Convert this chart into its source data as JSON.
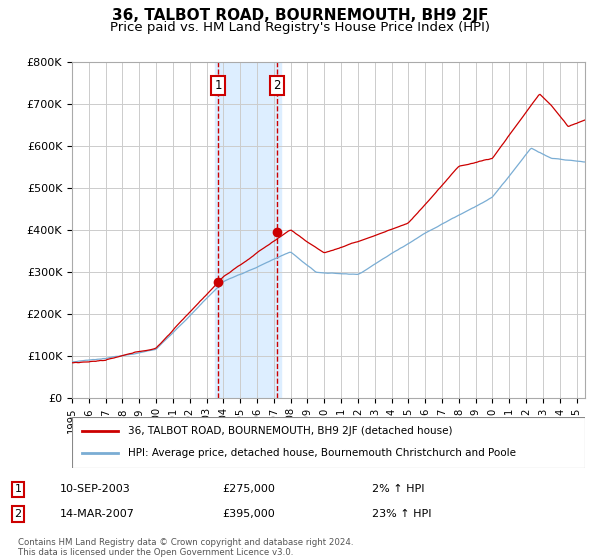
{
  "title": "36, TALBOT ROAD, BOURNEMOUTH, BH9 2JF",
  "subtitle": "Price paid vs. HM Land Registry's House Price Index (HPI)",
  "ylabel_ticks": [
    "£0",
    "£100K",
    "£200K",
    "£300K",
    "£400K",
    "£500K",
    "£600K",
    "£700K",
    "£800K"
  ],
  "ylim": [
    0,
    800000
  ],
  "xlim_start": 1995.0,
  "xlim_end": 2025.5,
  "purchase1_x": 2003.69,
  "purchase1_y": 275000,
  "purchase1_label": "1",
  "purchase2_x": 2007.2,
  "purchase2_y": 395000,
  "purchase2_label": "2",
  "shade_x1": 2003.5,
  "shade_x2": 2007.45,
  "line1_color": "#cc0000",
  "line2_color": "#7aadd4",
  "shade_color": "#ddeeff",
  "grid_color": "#cccccc",
  "bg_color": "#ffffff",
  "box_color": "#cc0000",
  "legend_line1": "36, TALBOT ROAD, BOURNEMOUTH, BH9 2JF (detached house)",
  "legend_line2": "HPI: Average price, detached house, Bournemouth Christchurch and Poole",
  "ann1_date": "10-SEP-2003",
  "ann1_price": "£275,000",
  "ann1_hpi": "2% ↑ HPI",
  "ann2_date": "14-MAR-2007",
  "ann2_price": "£395,000",
  "ann2_hpi": "23% ↑ HPI",
  "footer": "Contains HM Land Registry data © Crown copyright and database right 2024.\nThis data is licensed under the Open Government Licence v3.0.",
  "title_fontsize": 11,
  "subtitle_fontsize": 9.5
}
